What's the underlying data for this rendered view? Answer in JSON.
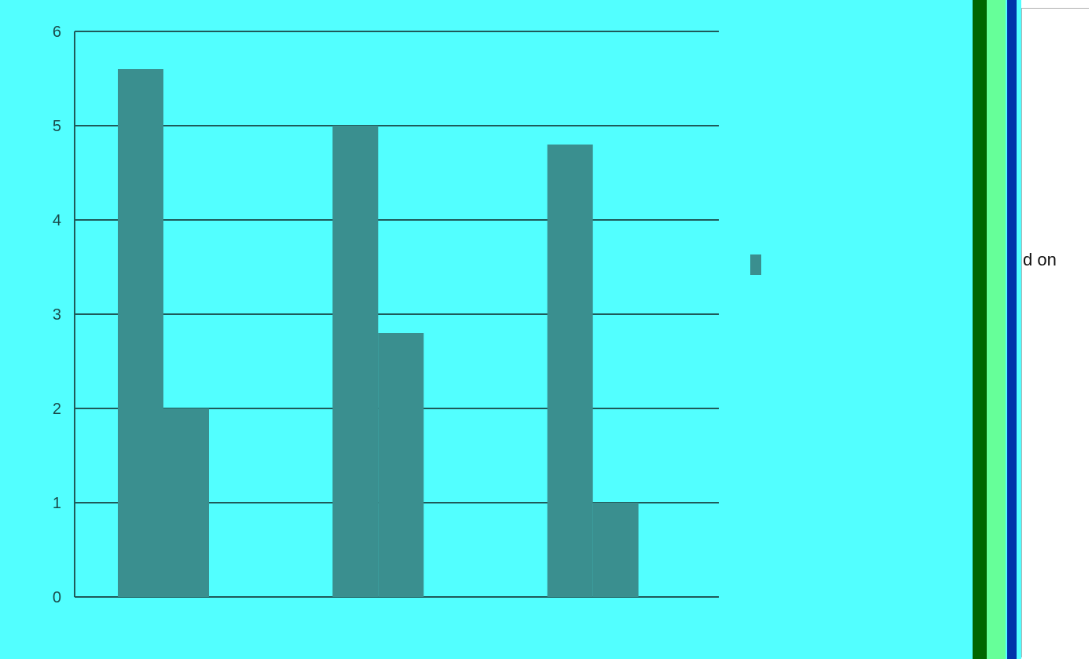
{
  "colors": {
    "background": "#52ffff",
    "bar": "#3a8f8f",
    "grid": "#1f5a5a",
    "axis_text": "#1a4a4a",
    "strip_dark": "#006600",
    "strip_light": "#66ff99",
    "strip_blue": "#0033aa"
  },
  "overlay_text": "d on",
  "chart_data": {
    "type": "bar",
    "categories": [
      "",
      "",
      ""
    ],
    "series": [
      {
        "name": "",
        "values": [
          5.6,
          5.0,
          4.8
        ]
      },
      {
        "name": "",
        "values": [
          2.0,
          2.8,
          1.0
        ]
      },
      {
        "name": "",
        "values": [
          0,
          0,
          0
        ]
      }
    ],
    "legend_labels": [
      "",
      "",
      ""
    ],
    "ylim": [
      0,
      6
    ],
    "yticks": [
      0,
      1,
      2,
      3,
      4,
      5,
      6
    ],
    "grid": true,
    "legend_position": "right"
  }
}
